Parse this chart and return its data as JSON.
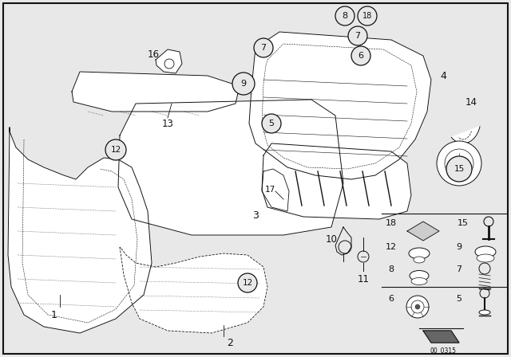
{
  "bg_color": "#e8e8e8",
  "fig_width": 6.4,
  "fig_height": 4.48,
  "line_color": "#111111",
  "line_width": 0.7
}
